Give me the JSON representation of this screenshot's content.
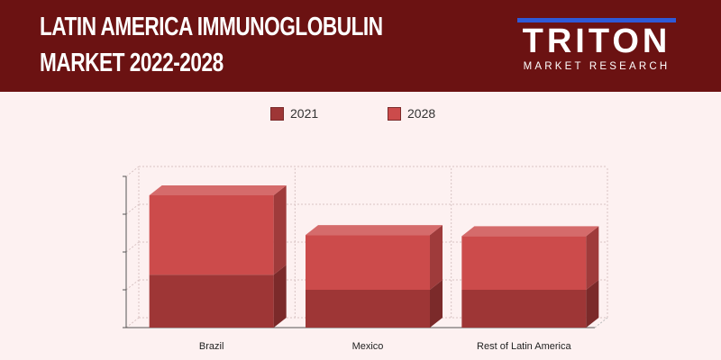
{
  "header": {
    "title_line1": "LATIN AMERICA IMMUNOGLOBULIN",
    "title_line2": "MARKET 2022-2028",
    "logo_word": "TRITON",
    "logo_subtitle": "MARKET RESEARCH",
    "background_color": "#6b1212",
    "logo_accent_color": "#2f5ad8"
  },
  "chart_data": {
    "type": "bar",
    "stacked": true,
    "style": "3d",
    "categories": [
      "Brazil",
      "Mexico",
      "Rest of Latin America"
    ],
    "series": [
      {
        "name": "2021",
        "values": [
          1.4,
          1.0,
          1.0
        ],
        "color": "#9e3636"
      },
      {
        "name": "2028",
        "values": [
          2.1,
          1.45,
          1.42
        ],
        "color": "#cc4b4b"
      }
    ],
    "ylim": [
      0,
      4
    ],
    "y_tick_labels_shown": false,
    "grid": true,
    "legend_position": "top-center",
    "title": "",
    "xlabel": "",
    "ylabel": ""
  }
}
